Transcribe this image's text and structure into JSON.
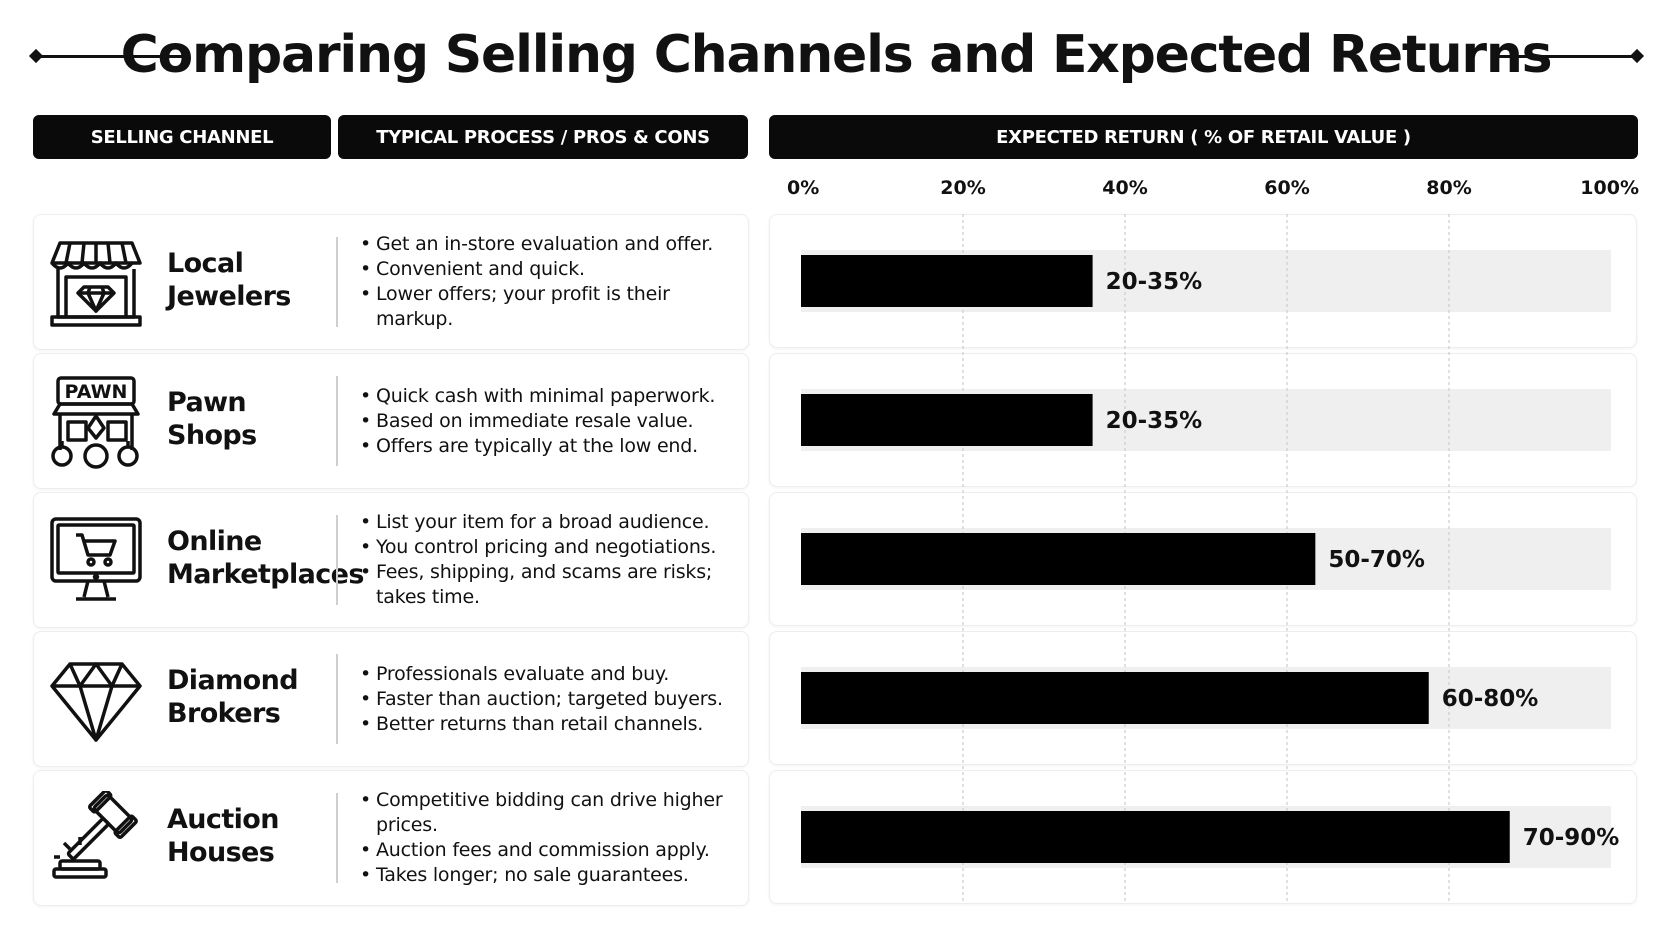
{
  "title": "Comparing Selling Channels and Expected Returns",
  "headers": {
    "channel": "SELLING CHANNEL",
    "process": "TYPICAL PROCESS / PROS & CONS",
    "return": "EXPECTED RETURN ( % OF RETAIL VALUE )"
  },
  "rows": [
    {
      "icon": "jewelry-store-icon",
      "name_line1": "Local",
      "name_line2": "Jewelers",
      "bullets": [
        "Get an in-store evaluation and offer.",
        "Convenient and quick.",
        "Lower offers; your profit is their markup."
      ]
    },
    {
      "icon": "pawn-shop-icon",
      "name_line1": "Pawn",
      "name_line2": "Shops",
      "icon_text": "PAWN",
      "bullets": [
        "Quick cash with minimal paperwork.",
        "Based on immediate resale value.",
        "Offers are typically at the low end."
      ]
    },
    {
      "icon": "computer-cart-icon",
      "name_line1": "Online",
      "name_line2": "Marketplaces",
      "bullets": [
        "List your item for a broad audience.",
        "You control pricing and negotiations.",
        "Fees, shipping, and scams are risks; takes time."
      ]
    },
    {
      "icon": "diamond-icon",
      "name_line1": "Diamond",
      "name_line2": "Brokers",
      "bullets": [
        "Professionals evaluate and buy.",
        "Faster than auction; targeted buyers.",
        "Better returns than retail channels."
      ]
    },
    {
      "icon": "gavel-icon",
      "name_line1": "Auction",
      "name_line2": "Houses",
      "bullets": [
        "Competitive bidding can drive higher prices.",
        "Auction fees and commission apply.",
        "Takes longer; no sale guarantees."
      ]
    }
  ],
  "chart_data": {
    "type": "bar",
    "orientation": "horizontal",
    "xlabel": "EXPECTED RETURN ( % OF RETAIL VALUE )",
    "xlim": [
      0,
      100
    ],
    "ticks": [
      0,
      20,
      40,
      60,
      80,
      100
    ],
    "tick_labels": [
      "0%",
      "20%",
      "40%",
      "60%",
      "80%",
      "100%"
    ],
    "grid": true,
    "categories": [
      "Local Jewelers",
      "Pawn Shops",
      "Online Marketplaces",
      "Diamond Brokers",
      "Auction Houses"
    ],
    "ranges": [
      [
        20,
        35
      ],
      [
        20,
        35
      ],
      [
        50,
        70
      ],
      [
        60,
        80
      ],
      [
        70,
        90
      ]
    ],
    "values": [
      36,
      36,
      63.5,
      77.5,
      87.5
    ],
    "labels": [
      "20-35%",
      "20-35%",
      "50-70%",
      "60-80%",
      "70-90%"
    ],
    "colors": {
      "bar": "#000000",
      "track": "#efefef",
      "grid": "#cccccc"
    }
  }
}
